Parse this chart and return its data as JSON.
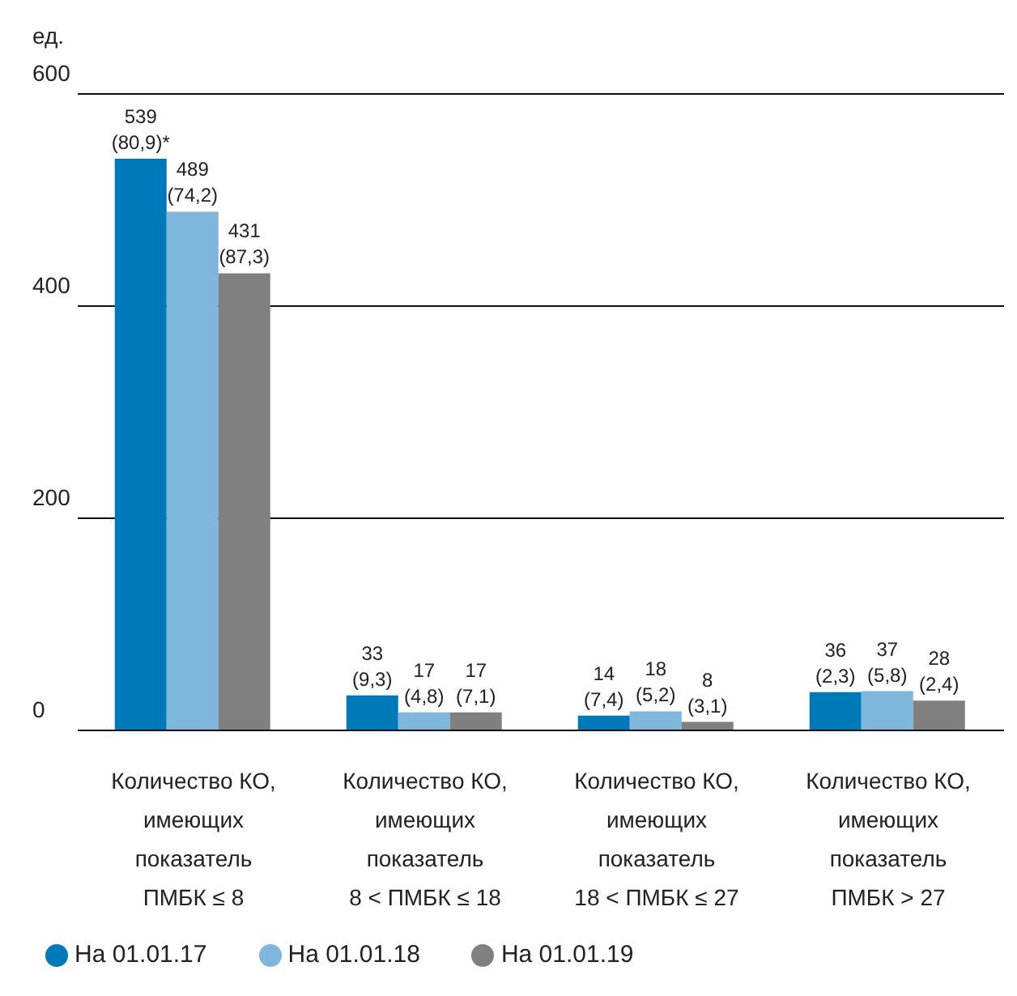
{
  "chart_data": {
    "type": "bar",
    "ylabel": "ед.",
    "categories": [
      "Количество КО,\nимеющих\nпоказатель\nПМБК ≤ 8",
      "Количество КО,\nимеющих\nпоказатель\n8 < ПМБК ≤ 18",
      "Количество КО,\nимеющих\nпоказатель\n18 < ПМБК ≤ 27",
      "Количество КО,\nимеющих\nпоказатель\nПМБК > 27"
    ],
    "series": [
      {
        "name": "На 01.01.17",
        "color": "#0079b8",
        "values": [
          539,
          33,
          14,
          36
        ],
        "value_labels": [
          "539\n(80,9)*",
          "33\n(9,3)",
          "14\n(7,4)",
          "36\n(2,3)"
        ]
      },
      {
        "name": "На 01.01.18",
        "color": "#7fb6dc",
        "values": [
          489,
          17,
          18,
          37
        ],
        "value_labels": [
          "489\n(74,2)",
          "17\n(4,8)",
          "18\n(5,2)",
          "37\n(5,8)"
        ]
      },
      {
        "name": "На 01.01.19",
        "color": "#808080",
        "values": [
          431,
          17,
          8,
          28
        ],
        "value_labels": [
          "431\n(87,3)",
          "17\n(7,1)",
          "8\n(3,1)",
          "28\n(2,4)"
        ]
      }
    ],
    "ylim": [
      0,
      600
    ],
    "yticks": [
      0,
      200,
      400,
      600
    ],
    "grid": "y",
    "legend": "bottom left"
  }
}
